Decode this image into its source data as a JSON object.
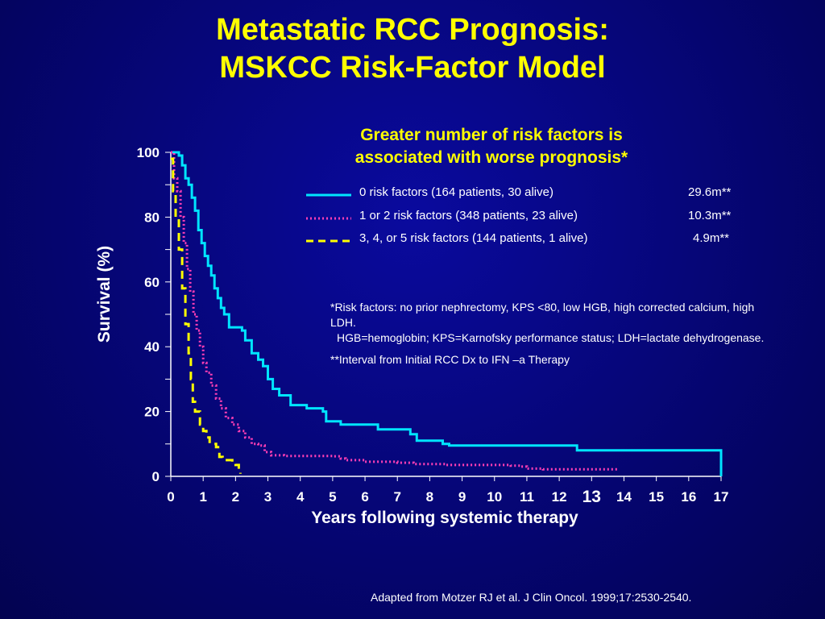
{
  "title": {
    "line1": "Metastatic RCC Prognosis:",
    "line2": "MSKCC Risk-Factor Model"
  },
  "subtitle": {
    "line1": "Greater number of risk factors is",
    "line2": "associated with worse prognosis*"
  },
  "footnotes": {
    "risk_factors": "*Risk factors: no prior nephrectomy, KPS <80, low HGB, high corrected calcium, high LDH.",
    "abbreviations": "HGB=hemoglobin; KPS=Karnofsky performance status; LDH=lactate dehydrogenase.",
    "interval": "**Interval from Initial RCC Dx to IFN –a Therapy"
  },
  "source": "Adapted from Motzer RJ et al. J Clin Oncol. 1999;17:2530-2540.",
  "chart_data": {
    "type": "line",
    "xlabel": "Years following systemic therapy",
    "ylabel": "Survival (%)",
    "xlim": [
      0,
      17
    ],
    "ylim": [
      0,
      100
    ],
    "x_ticks": [
      "0",
      "1",
      "2",
      "3",
      "4",
      "5",
      "6",
      "7",
      "8",
      "9",
      "10",
      "11",
      "12",
      "13",
      "14",
      "15",
      "16",
      "17"
    ],
    "y_ticks": [
      "0",
      "20",
      "40",
      "60",
      "80",
      "100"
    ],
    "step": true,
    "legend_placement": "top-right",
    "series": [
      {
        "name": "0 risk factors (164 patients, 30 alive)",
        "median": "29.6m**",
        "color": "#00e5ff",
        "style": "solid",
        "points": [
          [
            0,
            100
          ],
          [
            0.25,
            99
          ],
          [
            0.35,
            96
          ],
          [
            0.45,
            92
          ],
          [
            0.55,
            90
          ],
          [
            0.65,
            86
          ],
          [
            0.75,
            82
          ],
          [
            0.85,
            76
          ],
          [
            0.95,
            72
          ],
          [
            1.05,
            68
          ],
          [
            1.15,
            65
          ],
          [
            1.25,
            62
          ],
          [
            1.35,
            58
          ],
          [
            1.45,
            55
          ],
          [
            1.55,
            52
          ],
          [
            1.65,
            50
          ],
          [
            1.8,
            46
          ],
          [
            2.2,
            45
          ],
          [
            2.3,
            42
          ],
          [
            2.5,
            38
          ],
          [
            2.7,
            36
          ],
          [
            2.85,
            34
          ],
          [
            3.0,
            30
          ],
          [
            3.15,
            27
          ],
          [
            3.35,
            25
          ],
          [
            3.7,
            22
          ],
          [
            4.2,
            21
          ],
          [
            4.7,
            20
          ],
          [
            4.8,
            17
          ],
          [
            5.25,
            16
          ],
          [
            6.4,
            14.5
          ],
          [
            7.4,
            13
          ],
          [
            7.6,
            11
          ],
          [
            8.4,
            10
          ],
          [
            8.6,
            9.5
          ],
          [
            12.5,
            9.5
          ],
          [
            12.55,
            8
          ],
          [
            17,
            8
          ],
          [
            17,
            0
          ]
        ]
      },
      {
        "name": "1 or 2 risk factors (348 patients, 23 alive)",
        "median": "10.3m**",
        "color": "#ff3fb5",
        "style": "dotted",
        "points": [
          [
            0,
            100
          ],
          [
            0.1,
            92
          ],
          [
            0.2,
            88
          ],
          [
            0.3,
            80
          ],
          [
            0.4,
            72
          ],
          [
            0.5,
            64
          ],
          [
            0.6,
            57
          ],
          [
            0.7,
            50
          ],
          [
            0.8,
            45
          ],
          [
            0.9,
            40
          ],
          [
            1.0,
            35
          ],
          [
            1.1,
            32
          ],
          [
            1.25,
            28
          ],
          [
            1.4,
            24
          ],
          [
            1.55,
            21
          ],
          [
            1.7,
            18
          ],
          [
            1.9,
            16
          ],
          [
            2.1,
            14
          ],
          [
            2.3,
            12
          ],
          [
            2.5,
            10
          ],
          [
            2.7,
            9.5
          ],
          [
            2.9,
            7.5
          ],
          [
            3.1,
            6.5
          ],
          [
            3.5,
            6.3
          ],
          [
            5.0,
            6.2
          ],
          [
            5.25,
            5.5
          ],
          [
            5.4,
            5
          ],
          [
            6.0,
            4.5
          ],
          [
            7.0,
            4.2
          ],
          [
            7.5,
            3.8
          ],
          [
            8.5,
            3.5
          ],
          [
            10.5,
            3.3
          ],
          [
            10.8,
            3.0
          ],
          [
            11.0,
            2.4
          ],
          [
            11.5,
            2.2
          ],
          [
            13.8,
            2.2
          ]
        ]
      },
      {
        "name": "3, 4, or 5 risk factors (144 patients, 1 alive)",
        "median": "4.9m**",
        "color": "#ffff00",
        "style": "dashed",
        "points": [
          [
            0,
            98
          ],
          [
            0.07,
            88
          ],
          [
            0.15,
            80
          ],
          [
            0.25,
            70
          ],
          [
            0.35,
            58
          ],
          [
            0.45,
            47
          ],
          [
            0.55,
            38
          ],
          [
            0.62,
            30
          ],
          [
            0.68,
            23
          ],
          [
            0.75,
            20
          ],
          [
            0.9,
            16
          ],
          [
            1.0,
            14
          ],
          [
            1.1,
            12
          ],
          [
            1.2,
            10
          ],
          [
            1.4,
            9
          ],
          [
            1.5,
            6
          ],
          [
            1.6,
            5
          ],
          [
            1.9,
            4.5
          ],
          [
            2.0,
            3.5
          ],
          [
            2.1,
            2.0
          ],
          [
            2.15,
            0.8
          ]
        ]
      }
    ]
  }
}
